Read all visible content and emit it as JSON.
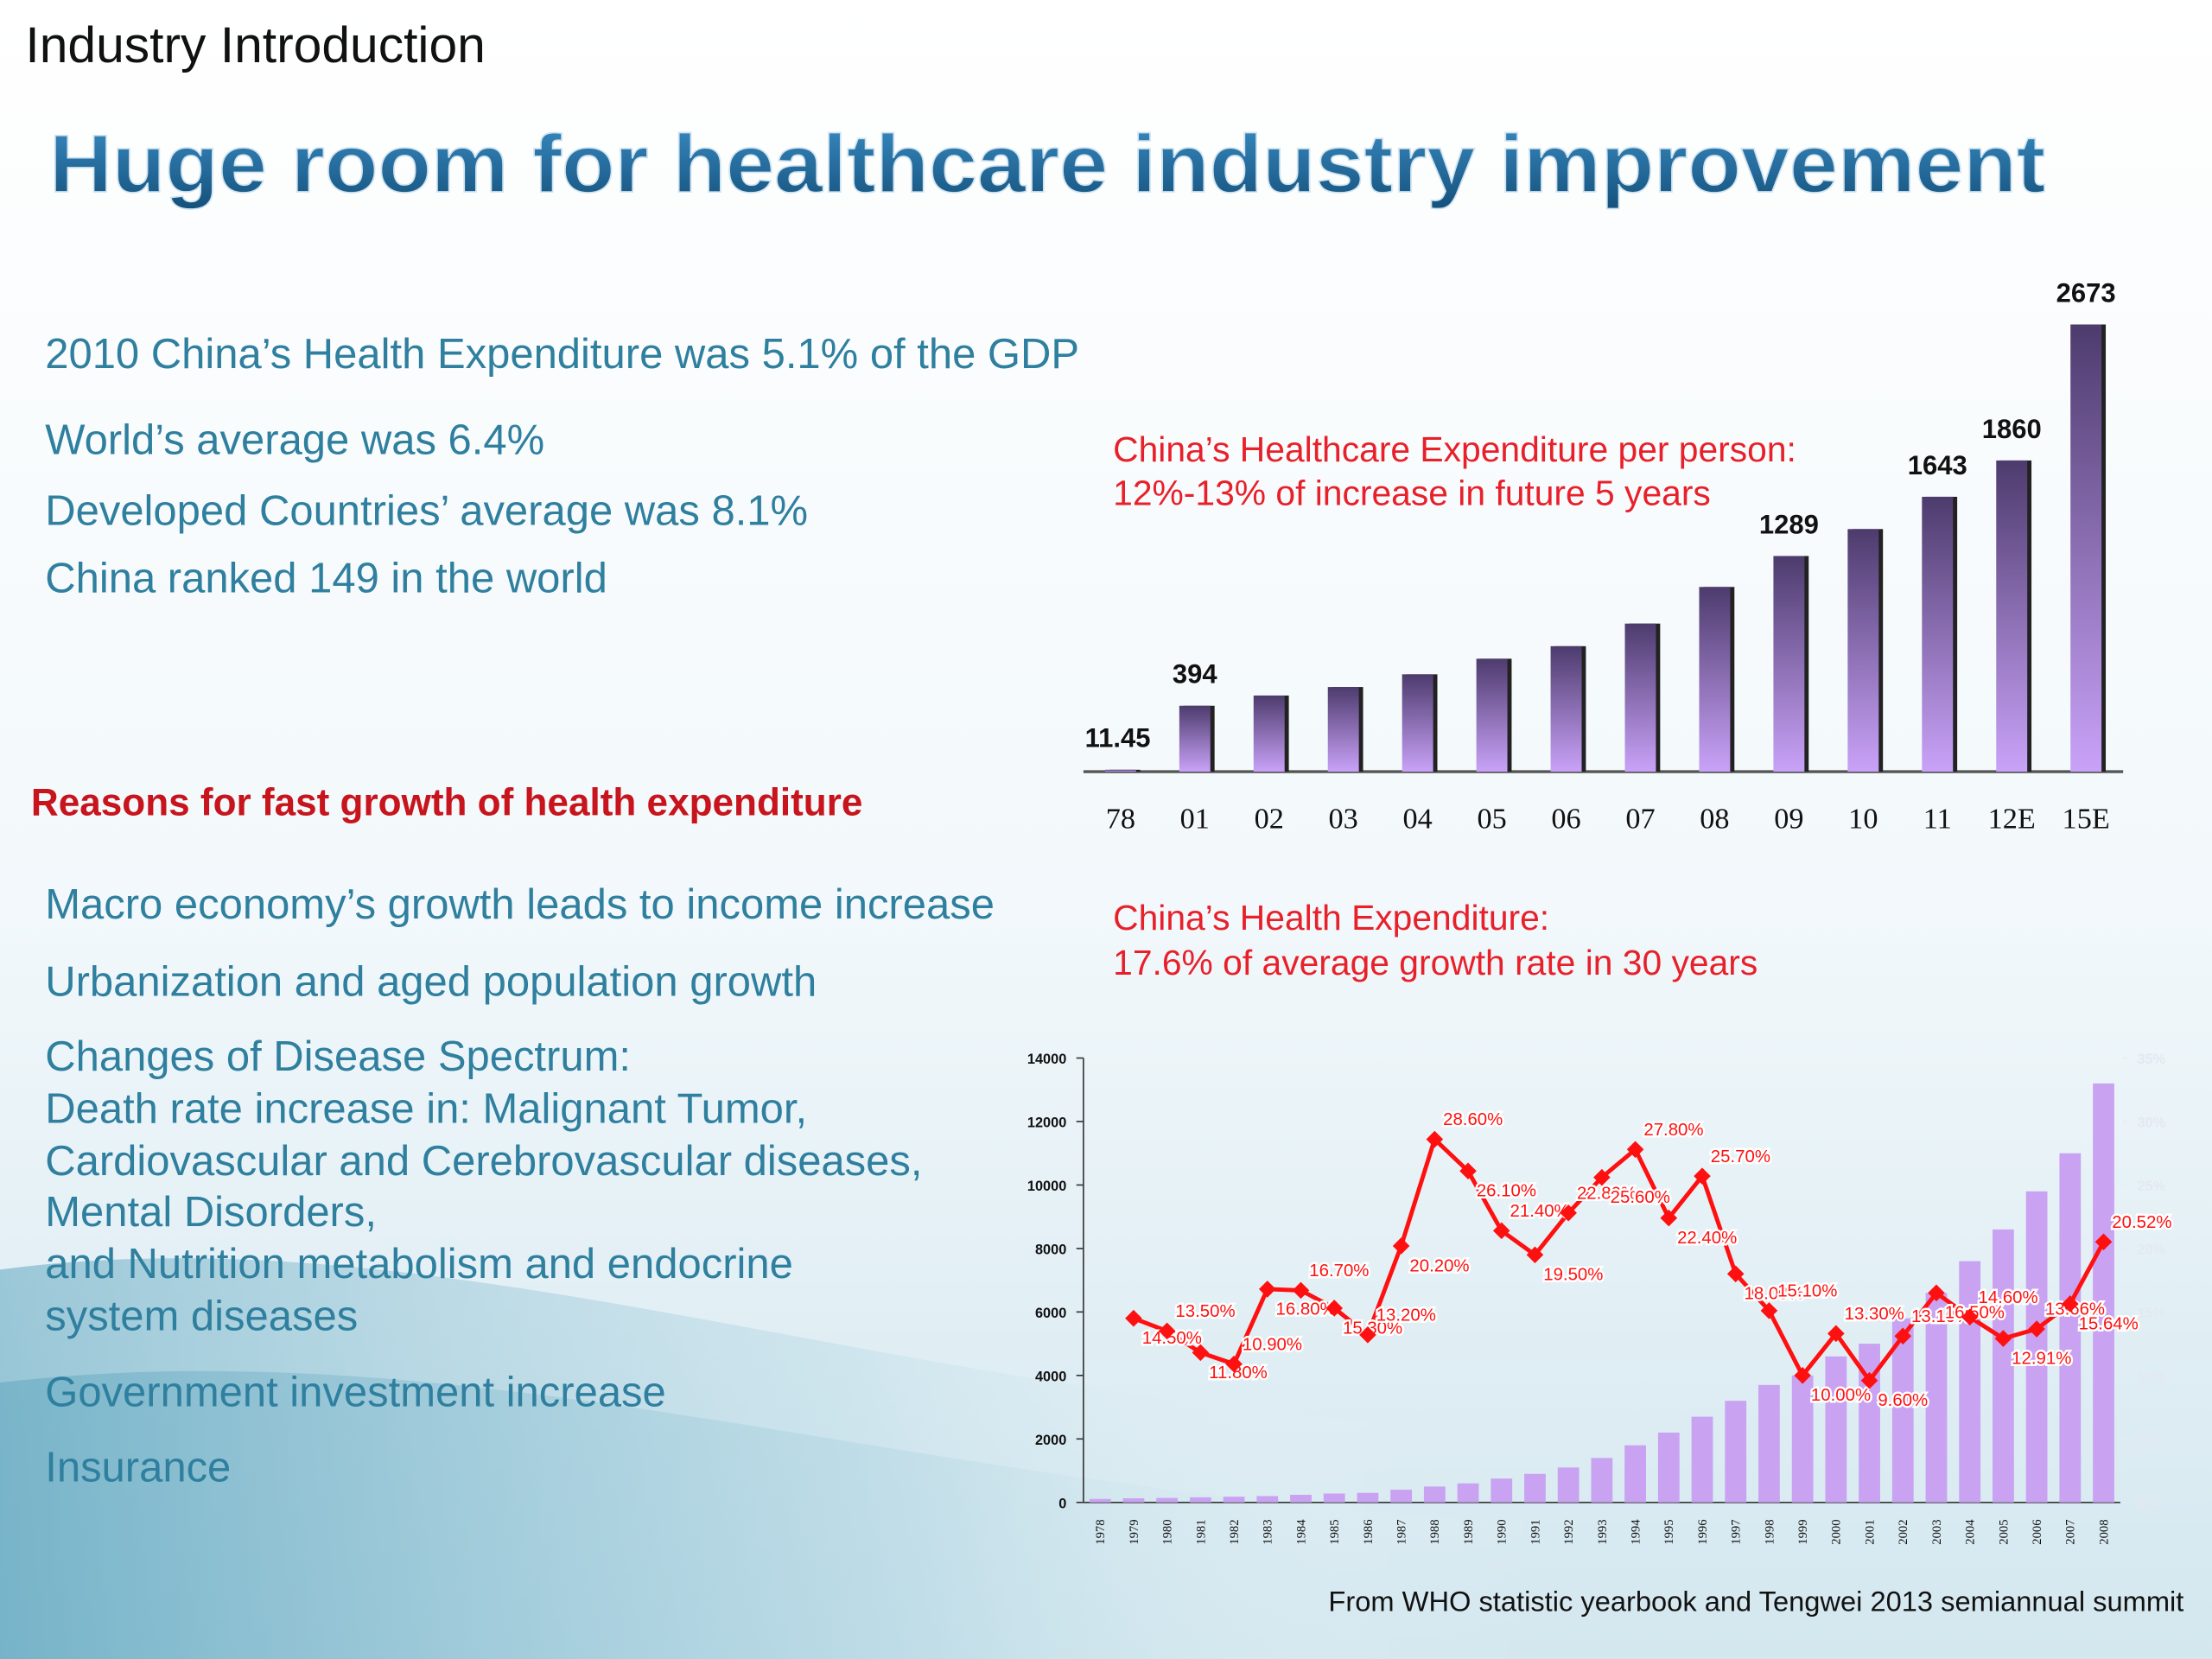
{
  "page": {
    "section": "Industry Introduction",
    "title": "Huge room for healthcare industry improvement",
    "stats": [
      "2010 China’s Health Expenditure was 5.1% of the GDP",
      "World’s average was 6.4%",
      "Developed Countries’ average was 8.1%",
      "China ranked 149 in the world"
    ],
    "reasons_heading": "Reasons for fast growth of health expenditure",
    "reasons": [
      [
        "Macro economy’s growth leads to income increase"
      ],
      [
        "Urbanization and aged population growth"
      ],
      [
        "Changes of Disease Spectrum:",
        "Death rate increase in: Malignant Tumor,",
        "Cardiovascular and Cerebrovascular diseases,",
        "Mental Disorders,",
        "and Nutrition metabolism and endocrine",
        "system diseases"
      ],
      [
        "Government investment increase"
      ],
      [
        "Insurance"
      ]
    ],
    "source": "From WHO statistic yearbook and Tengwei 2013 semiannual summit"
  },
  "chart_data": [
    {
      "type": "bar",
      "annotation": [
        "China’s Healthcare Expenditure per person:",
        "12%-13% of increase in future 5 years"
      ],
      "categories": [
        "78",
        "01",
        "02",
        "03",
        "04",
        "05",
        "06",
        "07",
        "08",
        "09",
        "10",
        "11",
        "12E",
        "15E"
      ],
      "values": [
        11.45,
        394,
        455,
        506,
        582,
        675,
        750,
        885,
        1104,
        1289,
        1450,
        1643,
        1860,
        2673
      ],
      "value_labels": [
        "11.45",
        "394",
        null,
        null,
        null,
        null,
        null,
        null,
        null,
        "1289",
        null,
        "1643",
        "1860",
        "2673"
      ],
      "color": "#8e6cc0"
    },
    {
      "type": "bar-line",
      "annotation": [
        "China’s Health Expenditure:",
        "17.6% of average growth rate in 30 years"
      ],
      "categories": [
        "1978",
        "1979",
        "1980",
        "1981",
        "1982",
        "1983",
        "1984",
        "1985",
        "1986",
        "1987",
        "1988",
        "1989",
        "1990",
        "1991",
        "1992",
        "1993",
        "1994",
        "1995",
        "1996",
        "1997",
        "1998",
        "1999",
        "2000",
        "2001",
        "2002",
        "2003",
        "2004",
        "2005",
        "2006",
        "2007",
        "2008"
      ],
      "series": [
        {
          "type": "bar",
          "color": "#c9a2f2",
          "values": [
            110,
            130,
            140,
            160,
            180,
            200,
            240,
            280,
            300,
            400,
            500,
            600,
            750,
            900,
            1100,
            1400,
            1800,
            2200,
            2700,
            3200,
            3700,
            4000,
            4600,
            5000,
            5800,
            6600,
            7600,
            8600,
            9800,
            11000,
            13200
          ]
        },
        {
          "type": "line",
          "axis": "y2",
          "color": "#ff1010",
          "values": [
            null,
            14.5,
            13.5,
            11.8,
            10.9,
            16.8,
            16.7,
            15.3,
            13.2,
            20.2,
            28.6,
            26.1,
            21.4,
            19.5,
            22.8,
            25.6,
            27.8,
            22.4,
            25.7,
            18.0,
            15.1,
            10.0,
            13.3,
            9.6,
            13.1,
            16.5,
            14.6,
            12.91,
            13.66,
            15.64,
            20.52
          ],
          "value_labels": [
            null,
            "14.50%",
            "13.50%",
            "11.80%",
            "10.90%",
            "16.80%",
            "16.70%",
            "15.30%",
            "13.20%",
            "20.20%",
            "28.60%",
            "26.10%",
            "21.40%",
            "19.50%",
            "22.80%",
            "25.60%",
            "27.80%",
            "22.40%",
            "25.70%",
            "18.00%",
            "15.10%",
            "10.00%",
            "13.30%",
            "9.60%",
            "13.10%",
            "16.50%",
            "14.60%",
            "12.91%",
            "13.66%",
            "15.64%",
            "20.52%"
          ]
        }
      ],
      "ylim": [
        0,
        14000
      ],
      "yticks": [
        0,
        2000,
        4000,
        6000,
        8000,
        10000,
        12000,
        14000
      ],
      "y2lim": [
        0,
        35
      ],
      "y2ticks": [
        {
          "value": 0,
          "label": "0%"
        },
        {
          "value": 5,
          "label": "5%"
        },
        {
          "value": 10,
          "label": "10%"
        },
        {
          "value": 15,
          "label": "15%"
        },
        {
          "value": 20,
          "label": "20%"
        },
        {
          "value": 25,
          "label": "25%"
        },
        {
          "value": 30,
          "label": "30%"
        },
        {
          "value": 35,
          "label": "35%"
        }
      ]
    }
  ]
}
